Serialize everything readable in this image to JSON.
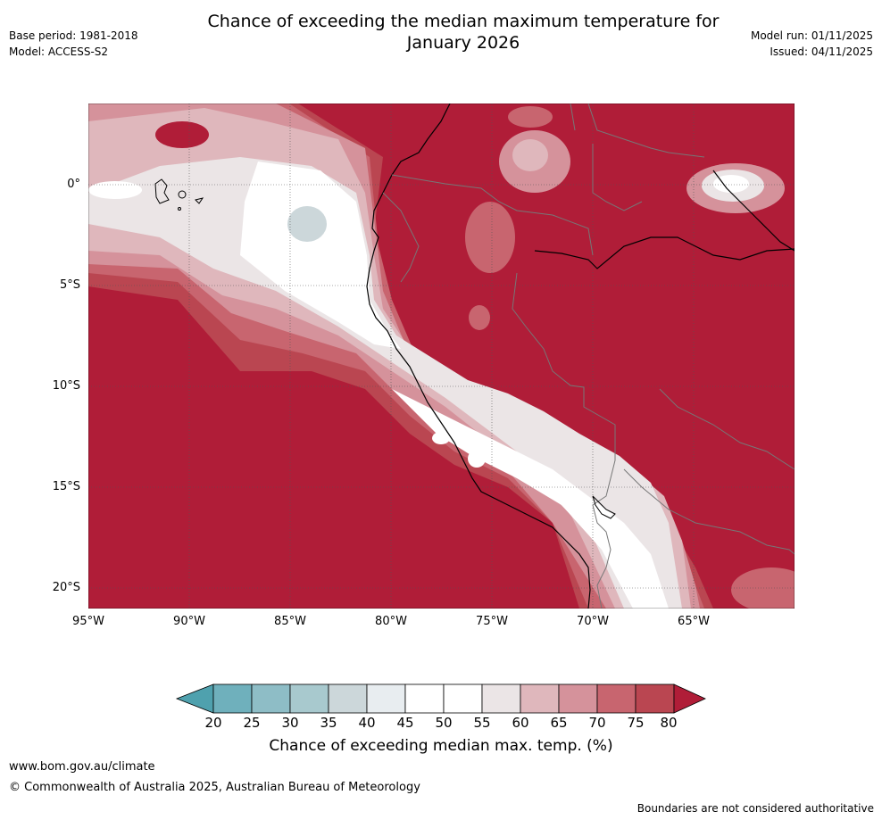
{
  "title_line1": "Chance of exceeding the median maximum temperature for",
  "title_line2": "January 2026",
  "base_period": "Base period: 1981-2018",
  "model": "Model: ACCESS-S2",
  "model_run": "Model run: 01/11/2025",
  "issued": "Issued: 04/11/2025",
  "lat_labels": [
    "0°",
    "5°S",
    "10°S",
    "15°S",
    "20°S"
  ],
  "lon_labels": [
    "95°W",
    "90°W",
    "85°W",
    "80°W",
    "75°W",
    "70°W",
    "65°W"
  ],
  "colorbar": {
    "ticks": [
      "20",
      "25",
      "30",
      "35",
      "40",
      "45",
      "50",
      "55",
      "60",
      "65",
      "70",
      "75",
      "80"
    ],
    "colors": [
      "#4fa1ae",
      "#6fb0bc",
      "#8ebdc6",
      "#a8c9ce",
      "#ccd7da",
      "#e8edf0",
      "#ffffff",
      "#ffffff",
      "#ebe5e6",
      "#dfb7bc",
      "#d5929b",
      "#c8656f",
      "#ba4651",
      "#b01d38"
    ],
    "title": "Chance of exceeding median max. temp. (%)"
  },
  "website": "www.bom.gov.au/climate",
  "copyright": "© Commonwealth of Australia 2025, Australian Bureau of Meteorology",
  "disclaimer": "Boundaries are not considered authoritative",
  "map_colors": {
    "c80": "#b01d38",
    "c75": "#ba4651",
    "c70": "#c8656f",
    "c65": "#d5929b",
    "c60": "#dfb7bc",
    "c55": "#ebe5e6",
    "c50": "#ffffff",
    "c40": "#ccd7da"
  }
}
